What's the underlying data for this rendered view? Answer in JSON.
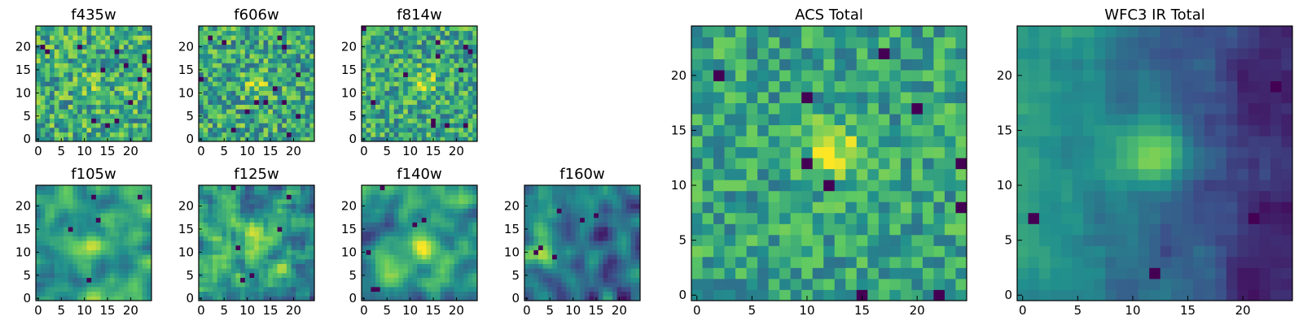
{
  "figure": {
    "layout_note": "",
    "colormap": "viridis",
    "colormap_stops": [
      "#440154",
      "#3b528b",
      "#21908d",
      "#5dc963",
      "#fde725"
    ]
  },
  "chart_data": [
    {
      "type": "heatmap",
      "title": "f435w",
      "grid": 25,
      "xlim": [
        0,
        24
      ],
      "ylim": [
        0,
        24
      ],
      "xticks": [
        "0",
        "5",
        "10",
        "15",
        "20"
      ],
      "yticks": [
        "0",
        "5",
        "10",
        "15",
        "20"
      ],
      "source_center": [
        12,
        12
      ],
      "source_amp": 0.12,
      "source_width": 1.8,
      "noise": 0.55,
      "smooth": 0,
      "seed": 11,
      "base": 0.62,
      "gradient": [
        0,
        0
      ],
      "dark_count": 14
    },
    {
      "type": "heatmap",
      "title": "f606w",
      "grid": 25,
      "xlim": [
        0,
        24
      ],
      "ylim": [
        0,
        24
      ],
      "xticks": [
        "0",
        "5",
        "10",
        "15",
        "20"
      ],
      "yticks": [
        "0",
        "5",
        "10",
        "15",
        "20"
      ],
      "source_center": [
        12,
        12
      ],
      "source_amp": 0.28,
      "source_width": 1.8,
      "noise": 0.55,
      "smooth": 0,
      "seed": 23,
      "base": 0.6,
      "gradient": [
        0,
        0
      ],
      "dark_count": 14
    },
    {
      "type": "heatmap",
      "title": "f814w",
      "grid": 25,
      "xlim": [
        0,
        24
      ],
      "ylim": [
        0,
        24
      ],
      "xticks": [
        "0",
        "5",
        "10",
        "15",
        "20"
      ],
      "yticks": [
        "0",
        "5",
        "10",
        "15",
        "20"
      ],
      "source_center": [
        13,
        12
      ],
      "source_amp": 0.3,
      "source_width": 1.8,
      "noise": 0.52,
      "smooth": 0,
      "seed": 37,
      "base": 0.6,
      "gradient": [
        0,
        0
      ],
      "dark_count": 12
    },
    {
      "type": "heatmap",
      "title": "f105w",
      "grid": 25,
      "xlim": [
        0,
        24
      ],
      "ylim": [
        0,
        24
      ],
      "xticks": [
        "0",
        "5",
        "10",
        "15",
        "20"
      ],
      "yticks": [
        "0",
        "5",
        "10",
        "15",
        "20"
      ],
      "source_center": [
        12,
        11
      ],
      "source_amp": 0.3,
      "source_width": 2.6,
      "noise": 0.6,
      "smooth": 2,
      "seed": 41,
      "base": 0.55,
      "gradient": [
        0,
        0
      ],
      "dark_count": 5
    },
    {
      "type": "heatmap",
      "title": "f125w",
      "grid": 25,
      "xlim": [
        0,
        24
      ],
      "ylim": [
        0,
        24
      ],
      "xticks": [
        "0",
        "5",
        "10",
        "15",
        "20"
      ],
      "yticks": [
        "0",
        "5",
        "10",
        "15",
        "20"
      ],
      "source_center": [
        12,
        12
      ],
      "source_amp": 0.3,
      "source_width": 2.4,
      "noise": 0.6,
      "smooth": 1,
      "seed": 53,
      "base": 0.55,
      "gradient": [
        0,
        0
      ],
      "dark_count": 6
    },
    {
      "type": "heatmap",
      "title": "f140w",
      "grid": 25,
      "xlim": [
        0,
        24
      ],
      "ylim": [
        0,
        24
      ],
      "xticks": [
        "0",
        "5",
        "10",
        "15",
        "20"
      ],
      "yticks": [
        "0",
        "5",
        "10",
        "15",
        "20"
      ],
      "source_center": [
        12,
        11
      ],
      "source_amp": 0.3,
      "source_width": 2.6,
      "noise": 0.6,
      "smooth": 2,
      "seed": 67,
      "base": 0.55,
      "gradient": [
        0,
        0
      ],
      "dark_count": 6
    },
    {
      "type": "heatmap",
      "title": "f160w",
      "grid": 25,
      "xlim": [
        0,
        24
      ],
      "ylim": [
        0,
        24
      ],
      "xticks": [
        "0",
        "5",
        "10",
        "15",
        "20"
      ],
      "yticks": [
        "0",
        "5",
        "10",
        "15",
        "20"
      ],
      "source_center": [
        3,
        11
      ],
      "source_amp": 0.35,
      "source_width": 2.6,
      "noise": 0.6,
      "smooth": 2,
      "seed": 79,
      "base": 0.5,
      "gradient": [
        -0.008,
        0
      ],
      "dark_count": 6
    },
    {
      "type": "heatmap",
      "title": "ACS Total",
      "grid": 25,
      "xlim": [
        0,
        24
      ],
      "ylim": [
        0,
        24
      ],
      "xticks": [
        "0",
        "5",
        "10",
        "15",
        "20"
      ],
      "yticks": [
        "0",
        "5",
        "10",
        "15",
        "20"
      ],
      "source_center": [
        12.5,
        13
      ],
      "source_amp": 0.4,
      "source_width": 1.7,
      "noise": 0.42,
      "smooth": 0,
      "seed": 97,
      "base": 0.58,
      "gradient": [
        0,
        0
      ],
      "dark_count": 10
    },
    {
      "type": "heatmap",
      "title": "WFC3 IR Total",
      "grid": 25,
      "xlim": [
        0,
        24
      ],
      "ylim": [
        0,
        24
      ],
      "xticks": [
        "0",
        "5",
        "10",
        "15",
        "20"
      ],
      "yticks": [
        "0",
        "5",
        "10",
        "15",
        "20"
      ],
      "source_center": [
        12,
        13
      ],
      "source_amp": 0.5,
      "source_width": 2.2,
      "noise": 0.22,
      "smooth": 1,
      "seed": 131,
      "base": 0.55,
      "gradient": [
        -0.018,
        0
      ],
      "dark_count": 4
    }
  ]
}
